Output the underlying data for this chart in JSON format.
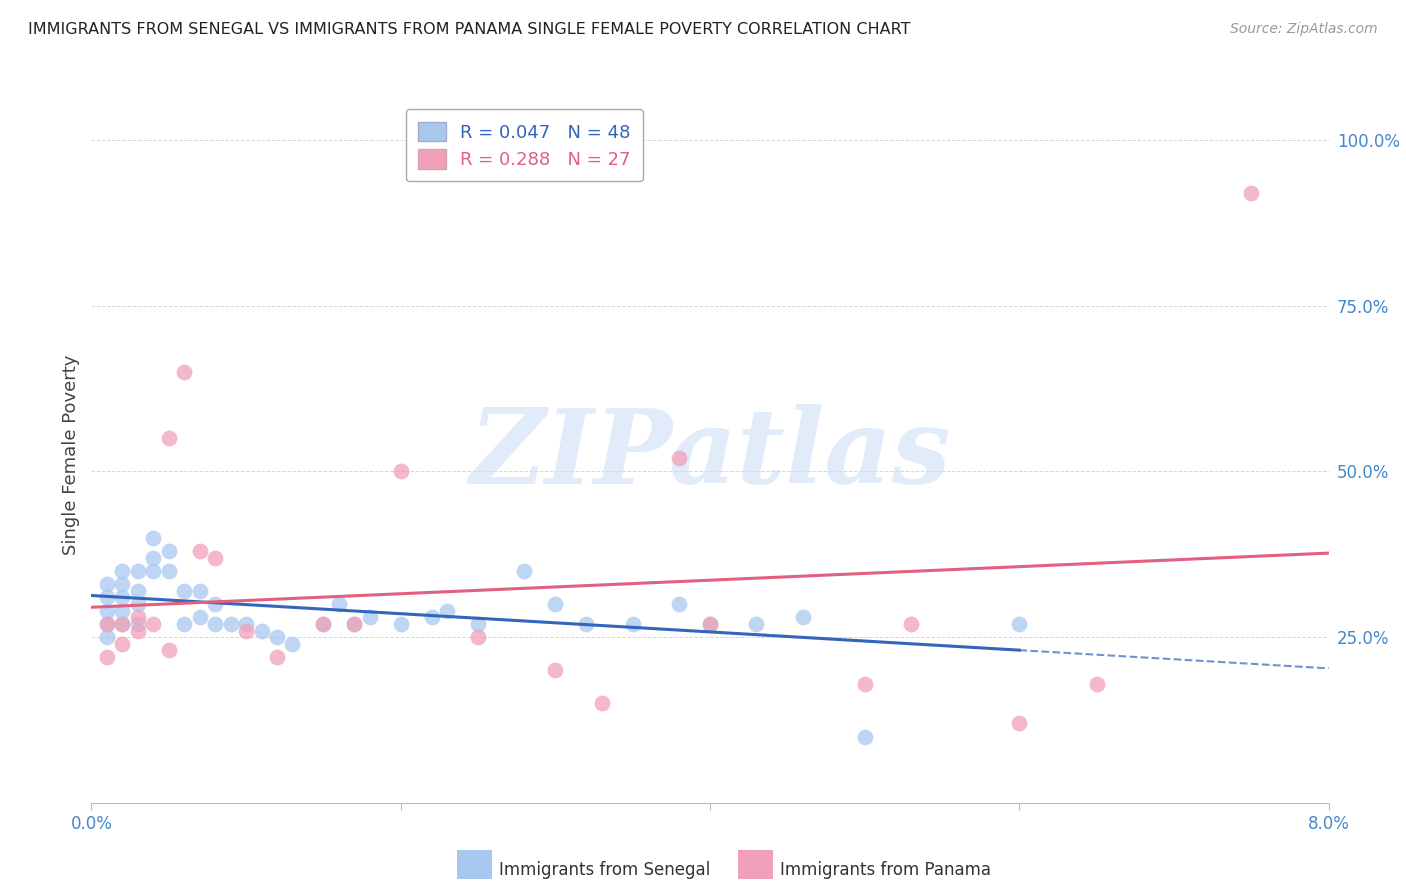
{
  "title": "IMMIGRANTS FROM SENEGAL VS IMMIGRANTS FROM PANAMA SINGLE FEMALE POVERTY CORRELATION CHART",
  "source": "Source: ZipAtlas.com",
  "ylabel": "Single Female Poverty",
  "xlim": [
    0.0,
    0.08
  ],
  "ylim": [
    0.0,
    1.05
  ],
  "legend_r1": "R = 0.047",
  "legend_n1": "N = 48",
  "legend_r2": "R = 0.288",
  "legend_n2": "N = 27",
  "color_senegal": "#a8c8f0",
  "color_panama": "#f0a0b8",
  "color_trend_senegal": "#3366bb",
  "color_trend_panama": "#e06080",
  "color_axis": "#4488cc",
  "color_title": "#222222",
  "color_source": "#999999",
  "watermark_color": "#d0dff5",
  "grid_color": "#cccccc",
  "legend_label1": "Immigrants from Senegal",
  "legend_label2": "Immigrants from Panama",
  "senegal_x": [
    0.001,
    0.001,
    0.001,
    0.001,
    0.001,
    0.002,
    0.002,
    0.002,
    0.002,
    0.002,
    0.003,
    0.003,
    0.003,
    0.003,
    0.004,
    0.004,
    0.004,
    0.005,
    0.005,
    0.006,
    0.006,
    0.007,
    0.007,
    0.008,
    0.008,
    0.009,
    0.01,
    0.011,
    0.012,
    0.013,
    0.015,
    0.016,
    0.017,
    0.018,
    0.02,
    0.022,
    0.023,
    0.025,
    0.028,
    0.03,
    0.032,
    0.035,
    0.038,
    0.04,
    0.043,
    0.046,
    0.05,
    0.06
  ],
  "senegal_y": [
    0.27,
    0.29,
    0.31,
    0.33,
    0.25,
    0.27,
    0.29,
    0.31,
    0.33,
    0.35,
    0.3,
    0.32,
    0.35,
    0.27,
    0.35,
    0.37,
    0.4,
    0.35,
    0.38,
    0.32,
    0.27,
    0.28,
    0.32,
    0.3,
    0.27,
    0.27,
    0.27,
    0.26,
    0.25,
    0.24,
    0.27,
    0.3,
    0.27,
    0.28,
    0.27,
    0.28,
    0.29,
    0.27,
    0.35,
    0.3,
    0.27,
    0.27,
    0.3,
    0.27,
    0.27,
    0.28,
    0.1,
    0.27
  ],
  "panama_x": [
    0.001,
    0.001,
    0.002,
    0.002,
    0.003,
    0.003,
    0.004,
    0.005,
    0.005,
    0.006,
    0.007,
    0.008,
    0.01,
    0.012,
    0.015,
    0.017,
    0.02,
    0.025,
    0.03,
    0.033,
    0.038,
    0.04,
    0.05,
    0.053,
    0.06,
    0.065,
    0.075
  ],
  "panama_y": [
    0.27,
    0.22,
    0.27,
    0.24,
    0.26,
    0.28,
    0.27,
    0.55,
    0.23,
    0.65,
    0.38,
    0.37,
    0.26,
    0.22,
    0.27,
    0.27,
    0.5,
    0.25,
    0.2,
    0.15,
    0.52,
    0.27,
    0.18,
    0.27,
    0.12,
    0.18,
    0.92
  ]
}
